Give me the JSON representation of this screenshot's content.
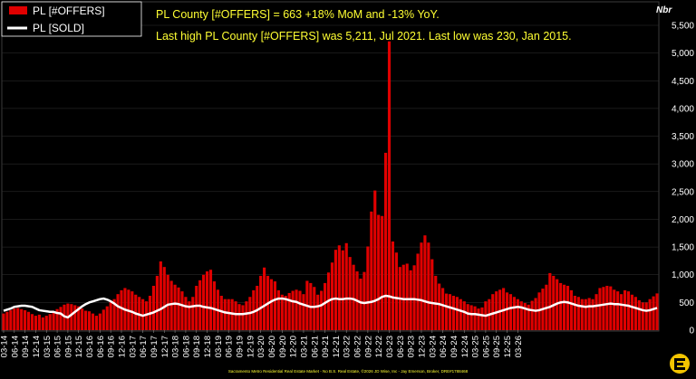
{
  "chart_data": {
    "type": "bar",
    "y_unit_label": "Nbr",
    "ylim": [
      0,
      5500
    ],
    "y_ticks": [
      "0",
      "500",
      "1,000",
      "1,500",
      "2,000",
      "2,500",
      "3,000",
      "3,500",
      "4,000",
      "4,500",
      "5,000",
      "5,500"
    ],
    "x_tick_labels": [
      "03-14",
      "06-14",
      "09-14",
      "12-14",
      "03-15",
      "06-15",
      "09-15",
      "12-15",
      "03-16",
      "06-16",
      "09-16",
      "12-16",
      "03-17",
      "06-17",
      "09-17",
      "12-17",
      "03-18",
      "06-18",
      "09-18",
      "12-18",
      "03-19",
      "06-19",
      "09-19",
      "12-19",
      "03-20",
      "06-20",
      "09-20",
      "12-20",
      "03-21",
      "06-21",
      "09-21",
      "12-21",
      "03-22",
      "06-22",
      "09-22",
      "12-22",
      "03-23",
      "06-23",
      "09-23",
      "12-23",
      "03-24",
      "06-24",
      "09-24",
      "12-24",
      "03-25",
      "06-25",
      "09-25",
      "12-25",
      "03-26"
    ],
    "start_month": "2014-03",
    "series": [
      {
        "name": "PL [#OFFERS]",
        "kind": "bar",
        "color": "#e00000",
        "values": [
          300,
          330,
          360,
          390,
          400,
          380,
          360,
          330,
          290,
          260,
          280,
          230,
          260,
          290,
          330,
          380,
          420,
          460,
          480,
          470,
          450,
          430,
          390,
          350,
          340,
          300,
          260,
          300,
          370,
          430,
          500,
          560,
          650,
          720,
          760,
          730,
          700,
          640,
          600,
          560,
          520,
          620,
          800,
          980,
          1240,
          1140,
          1000,
          890,
          820,
          770,
          700,
          600,
          520,
          600,
          800,
          900,
          1000,
          1060,
          1090,
          880,
          730,
          620,
          560,
          560,
          560,
          520,
          470,
          450,
          520,
          600,
          720,
          800,
          980,
          1130,
          980,
          920,
          880,
          720,
          640,
          620,
          670,
          710,
          730,
          710,
          650,
          890,
          850,
          780,
          640,
          710,
          850,
          1040,
          1220,
          1450,
          1530,
          1440,
          1570,
          1320,
          1180,
          1060,
          930,
          1050,
          1510,
          2140,
          2520,
          2080,
          2060,
          3200,
          5211,
          1600,
          1400,
          1140,
          1180,
          1200,
          1080,
          1170,
          1380,
          1580,
          1710,
          1580,
          1280,
          980,
          840,
          760,
          660,
          650,
          620,
          600,
          560,
          520,
          470,
          450,
          430,
          390,
          410,
          520,
          560,
          650,
          700,
          730,
          760,
          680,
          650,
          600,
          560,
          520,
          490,
          460,
          530,
          580,
          680,
          750,
          820,
          1030,
          980,
          920,
          850,
          820,
          800,
          720,
          620,
          600,
          560,
          560,
          580,
          560,
          650,
          760,
          780,
          800,
          790,
          730,
          700,
          650,
          720,
          700,
          640,
          600,
          540,
          500,
          500,
          560,
          610,
          663
        ]
      },
      {
        "name": "PL [SOLD]",
        "kind": "line",
        "color": "#ffffff",
        "values": [
          350,
          370,
          390,
          420,
          430,
          440,
          440,
          430,
          420,
          390,
          360,
          350,
          340,
          330,
          330,
          310,
          300,
          250,
          230,
          280,
          330,
          380,
          430,
          470,
          500,
          520,
          540,
          560,
          570,
          550,
          520,
          480,
          430,
          400,
          370,
          350,
          330,
          300,
          280,
          260,
          280,
          300,
          320,
          350,
          380,
          420,
          460,
          470,
          480,
          470,
          450,
          430,
          420,
          430,
          440,
          440,
          420,
          410,
          400,
          380,
          360,
          340,
          320,
          310,
          300,
          290,
          290,
          290,
          300,
          310,
          330,
          360,
          400,
          440,
          480,
          520,
          550,
          570,
          570,
          560,
          540,
          520,
          510,
          480,
          460,
          440,
          420,
          420,
          430,
          450,
          490,
          530,
          560,
          570,
          560,
          560,
          570,
          570,
          560,
          530,
          500,
          490,
          500,
          510,
          530,
          560,
          600,
          620,
          610,
          590,
          580,
          570,
          560,
          560,
          560,
          560,
          550,
          540,
          520,
          500,
          490,
          480,
          470,
          450,
          430,
          410,
          390,
          370,
          350,
          330,
          300,
          290,
          290,
          280,
          270,
          260,
          280,
          300,
          320,
          340,
          360,
          380,
          400,
          410,
          420,
          410,
          390,
          370,
          360,
          350,
          360,
          380,
          400,
          420,
          450,
          480,
          500,
          510,
          500,
          480,
          460,
          440,
          430,
          420,
          430,
          430,
          440,
          450,
          460,
          470,
          480,
          470,
          470,
          460,
          450,
          440,
          420,
          400,
          380,
          360,
          350,
          360,
          380,
          400
        ]
      }
    ],
    "legend_placement": "top-left",
    "annotations": [
      "PL County [#OFFERS] = 663 +18% MoM and -13% YoY.",
      "Last high PL County [#OFFERS] was 5,211, Jul 2021. Last low was 230, Jan 2015."
    ],
    "footer": "Sacramento Metro Residential Real Estate Market - No B.S. Real Estate, ©2026 JD Wise, Inc - Jay Emerson, Broker, DRE#1788468"
  },
  "colors": {
    "background": "#000000",
    "offers": "#e00000",
    "sold": "#ffffff",
    "annotation": "#ffff33",
    "grid": "#333333",
    "logo": "#f2c400"
  },
  "icons": {
    "logo": "brand-logo-icon"
  }
}
